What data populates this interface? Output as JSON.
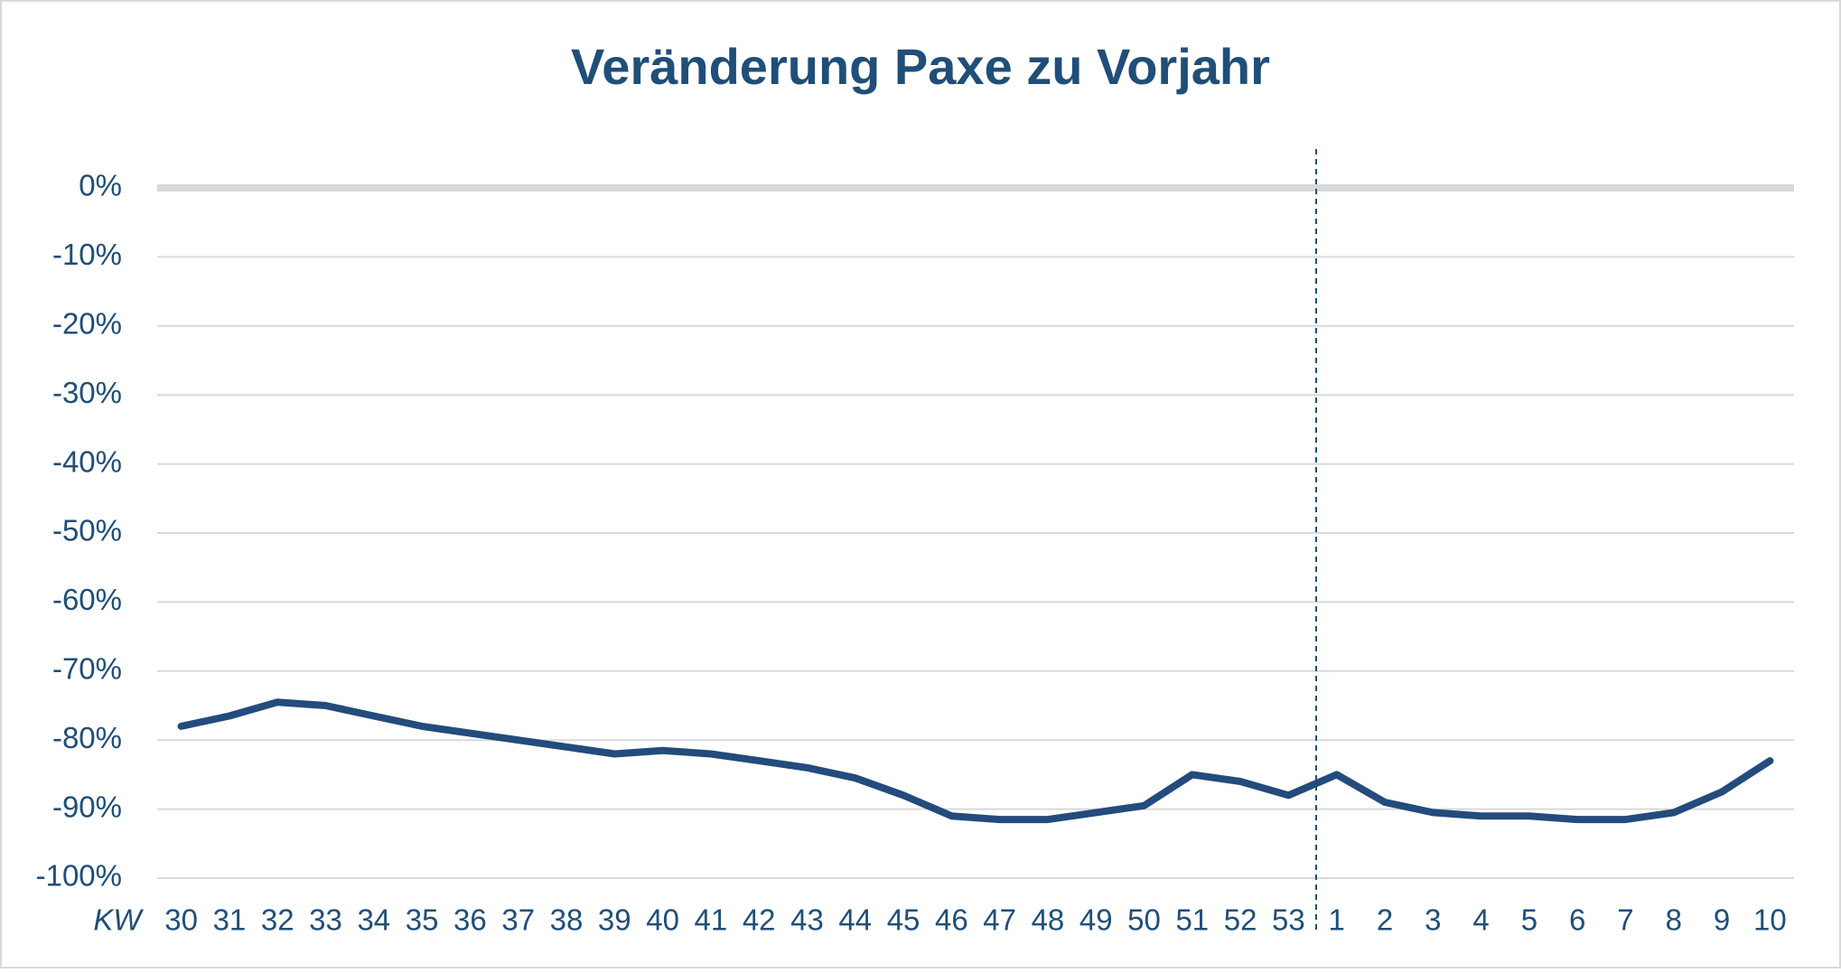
{
  "chart_data": {
    "type": "line",
    "title": "Veränderung Paxe zu Vorjahr",
    "x_label": "KW",
    "categories": [
      "30",
      "31",
      "32",
      "33",
      "34",
      "35",
      "36",
      "37",
      "38",
      "39",
      "40",
      "41",
      "42",
      "43",
      "44",
      "45",
      "46",
      "47",
      "48",
      "49",
      "50",
      "51",
      "52",
      "53",
      "1",
      "2",
      "3",
      "4",
      "5",
      "6",
      "7",
      "8",
      "9",
      "10"
    ],
    "series": [
      {
        "color": "#234b7c",
        "values": [
          -78,
          -76.5,
          -74.5,
          -75,
          -76.5,
          -78,
          -79,
          -80,
          -81,
          -82,
          -81.5,
          -82,
          -83,
          -84,
          -85.5,
          -88,
          -91,
          -91.5,
          -91.5,
          -90.5,
          -89.5,
          -85,
          -86,
          -88,
          -85,
          -89,
          -90.5,
          -91,
          -91,
          -91.5,
          -91.5,
          -90.5,
          -87.5,
          -83
        ]
      }
    ],
    "ylim": [
      -100,
      0
    ],
    "yticks": [
      {
        "value": 0,
        "label": "0%"
      },
      {
        "value": -10,
        "label": "-10%"
      },
      {
        "value": -20,
        "label": "-20%"
      },
      {
        "value": -30,
        "label": "-30%"
      },
      {
        "value": -40,
        "label": "-40%"
      },
      {
        "value": -50,
        "label": "-50%"
      },
      {
        "value": -60,
        "label": "-60%"
      },
      {
        "value": -70,
        "label": "-70%"
      },
      {
        "value": -80,
        "label": "-80%"
      },
      {
        "value": -90,
        "label": "-90%"
      },
      {
        "value": -100,
        "label": "-100%"
      }
    ],
    "grid": true
  }
}
